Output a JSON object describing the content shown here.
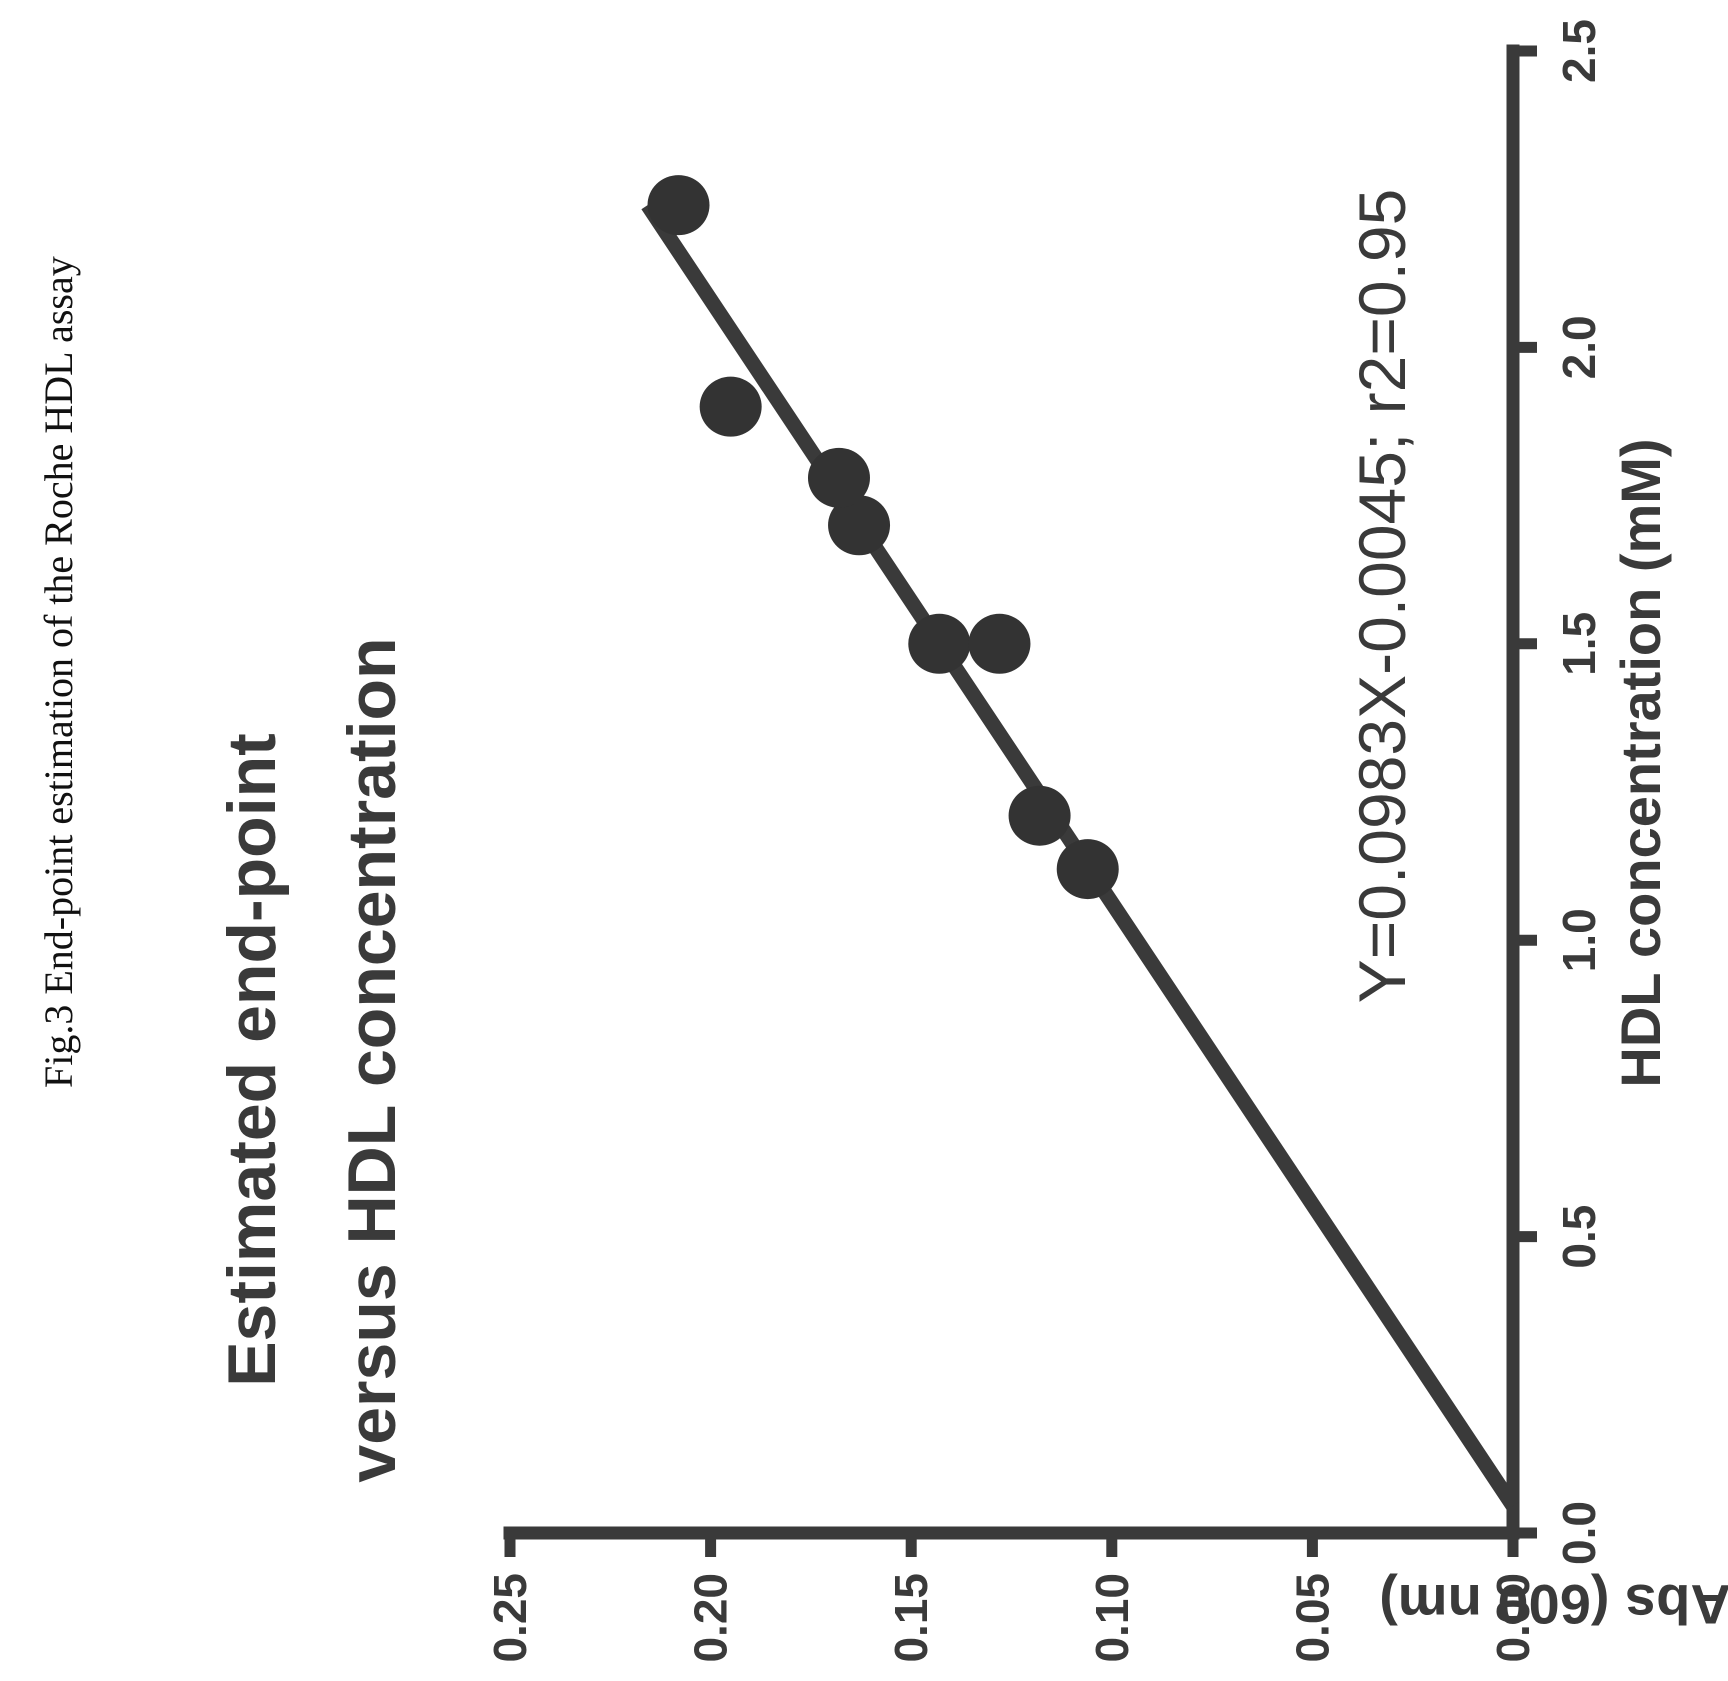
{
  "figure": {
    "caption": "Fig.3 End-point estimation of the Roche HDL assay"
  },
  "chart_data": {
    "type": "scatter",
    "title_lines": [
      "Estimated end-point",
      "versus HDL concentration"
    ],
    "equation": "Y=0.0983X-0.0045; r2=0.95",
    "xlabel": "HDL concentration (mM)",
    "ylabel": "Abs (600 nm)",
    "xlim": [
      0,
      2.5
    ],
    "ylim": [
      0,
      0.25
    ],
    "x_ticks": [
      "0.0",
      "0.5",
      "1.0",
      "1.5",
      "2.0",
      "2.5"
    ],
    "y_ticks": [
      "0.00",
      "0.05",
      "0.10",
      "0.15",
      "0.20",
      "0.25"
    ],
    "series": [
      {
        "points": [
          {
            "x": 1.12,
            "y": 0.106
          },
          {
            "x": 1.21,
            "y": 0.118
          },
          {
            "x": 1.5,
            "y": 0.143
          },
          {
            "x": 1.5,
            "y": 0.128
          },
          {
            "x": 1.7,
            "y": 0.163
          },
          {
            "x": 1.78,
            "y": 0.168
          },
          {
            "x": 1.9,
            "y": 0.195
          },
          {
            "x": 2.24,
            "y": 0.208
          }
        ]
      }
    ],
    "fit_line": {
      "slope": 0.0983,
      "intercept": -0.0045,
      "r2": 0.95
    },
    "orientation": "rotated 90 degrees counter-clockwise",
    "colors": {
      "ink": "#3a3a3a",
      "points": "#333333"
    }
  }
}
